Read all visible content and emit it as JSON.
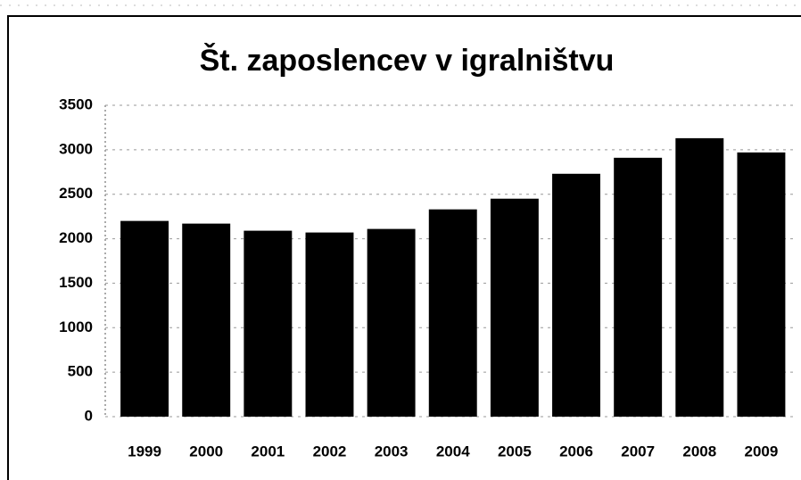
{
  "chart_data": {
    "type": "bar",
    "title": "Št. zaposlencev v igralništvu",
    "categories": [
      "1999",
      "2000",
      "2001",
      "2002",
      "2003",
      "2004",
      "2005",
      "2006",
      "2007",
      "2008",
      "2009"
    ],
    "values": [
      2200,
      2170,
      2090,
      2070,
      2110,
      2330,
      2450,
      2730,
      2910,
      3130,
      2970
    ],
    "color": "#000000",
    "ylim": [
      0,
      3500
    ],
    "yticks": [
      0,
      500,
      1000,
      1500,
      2000,
      2500,
      3000,
      3500
    ],
    "grid": true
  }
}
